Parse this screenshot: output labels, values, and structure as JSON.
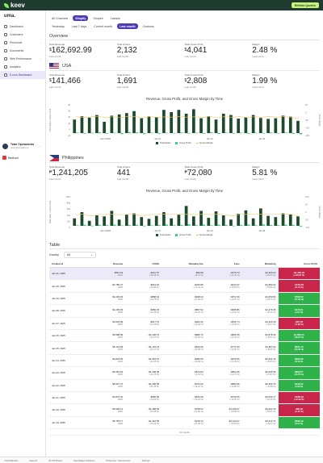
{
  "app": {
    "logo": "keev",
    "button": "Refetch Queries"
  },
  "sidebar": {
    "brand": "uma.",
    "items": [
      {
        "label": "Dashboard"
      },
      {
        "label": "Customers"
      },
      {
        "label": "Personnel"
      },
      {
        "label": "Documents"
      },
      {
        "label": "Web Performance"
      },
      {
        "label": "Analytics"
      },
      {
        "label": "E-com Dashboard"
      }
    ],
    "user": {
      "name": "Team Operaciones",
      "email": "team@umalabs.io"
    },
    "business": "Bertool"
  },
  "tabs": {
    "channels": [
      "All Channels",
      "Shopify",
      "Shopee",
      "Lazada"
    ],
    "active_channel": 1,
    "periods": [
      "Yesterday",
      "Last 7 days",
      "Current month",
      "Last month",
      "Customs"
    ],
    "active_period": 3
  },
  "overview": {
    "title": "Overview",
    "kpis": [
      {
        "label": "Total Revenue",
        "cur": "$",
        "value": "162,692.99",
        "sub": "Last month"
      },
      {
        "label": "Total Orders",
        "cur": "",
        "value": "2,132",
        "sub": "Last month"
      },
      {
        "label": "Total Gross Profit",
        "cur": "$",
        "value": "4,041",
        "sub": "Last month"
      },
      {
        "label": "Margin",
        "cur": "",
        "value": "2.48 %",
        "sub": "Last month"
      }
    ]
  },
  "usa": {
    "name": "USA",
    "kpis": [
      {
        "label": "Total Revenue",
        "cur": "$",
        "value": "141,466",
        "sub": "Last month"
      },
      {
        "label": "Total Orders",
        "cur": "",
        "value": "1,691",
        "sub": "Last month"
      },
      {
        "label": "Total Gross Profit",
        "cur": "$",
        "value": "2,808",
        "sub": "Last month"
      },
      {
        "label": "Margin",
        "cur": "",
        "value": "1.99 %",
        "sub": "Last month"
      }
    ],
    "chart_data": {
      "type": "bar",
      "title": "Revenue, Gross Profit, and Gross Margin by Time",
      "ylabel": "Total Sales + Gross Profit",
      "y2label": "Gross Margin",
      "xticks": [
        "Jan 5\n2025",
        "Jan 12",
        "Jan 19",
        "Jan 26"
      ],
      "ylim": [
        -1000,
        9000
      ],
      "y2lim": [
        -150,
        100
      ],
      "series": [
        {
          "name": "Total Sales",
          "values": [
            4200,
            5200,
            4800,
            5600,
            3500,
            5400,
            5800,
            6200,
            6800,
            4600,
            5200,
            5000,
            7200,
            6500,
            7200,
            6000,
            7400,
            4600,
            5200,
            4200,
            6000,
            5600,
            4500,
            4900,
            5600,
            4700,
            4400,
            4600,
            5400,
            5100,
            3800
          ]
        },
        {
          "name": "Gross Profit",
          "values": [
            120,
            -180,
            60,
            300,
            -200,
            90,
            -350,
            320,
            240,
            -300,
            150,
            -220,
            80,
            -150,
            200,
            -120,
            100,
            -200,
            260,
            -300,
            150,
            -180,
            120,
            -220,
            90,
            -150,
            200,
            -100,
            180,
            -250,
            -400
          ]
        },
        {
          "name": "Gross Margin",
          "values": [
            2,
            -4,
            1,
            5,
            -6,
            2,
            -6,
            5,
            4,
            -7,
            3,
            -4,
            1,
            -2,
            3,
            -2,
            1,
            -4,
            5,
            -7,
            3,
            -3,
            3,
            -4,
            2,
            -3,
            4,
            -2,
            3,
            -5,
            -10
          ]
        }
      ],
      "y2ticks": [
        "50",
        "0",
        "-50",
        "-100",
        "-150"
      ],
      "yticks": [
        "8k",
        "6k",
        "4k",
        "2k",
        "0",
        "-1k"
      ]
    }
  },
  "ph": {
    "name": "Philippines",
    "kpis": [
      {
        "label": "Total Revenue",
        "cur": "₱",
        "value": "1,241,205",
        "sub": "Last month"
      },
      {
        "label": "Total Orders",
        "cur": "",
        "value": "441",
        "sub": "Last month"
      },
      {
        "label": "Total Gross Profit",
        "cur": "₱",
        "value": "72,080",
        "sub": "Last month"
      },
      {
        "label": "Margin",
        "cur": "",
        "value": "5.81 %",
        "sub": "Last month"
      }
    ],
    "chart_data": {
      "type": "bar",
      "title": "Revenue, Gross Profit, and Gross Margin by Time",
      "ylabel": "Total Sales + Gross Profit",
      "y2label": "Gross Margin",
      "xticks": [
        "Jan 5\n2025",
        "Jan 12",
        "Jan 19",
        "Jan 26"
      ],
      "ylim": [
        -10000,
        120000
      ],
      "y2lim": [
        -100,
        150
      ],
      "series": [
        {
          "name": "Total Sales",
          "values": [
            30000,
            55000,
            20000,
            42000,
            38000,
            60000,
            25000,
            45000,
            50000,
            35000,
            28000,
            40000,
            55000,
            30000,
            45000,
            80000,
            38000,
            60000,
            32000,
            58000,
            42000,
            25000,
            48000,
            62000,
            30000,
            70000,
            40000,
            35000,
            50000,
            45000,
            38000
          ]
        },
        {
          "name": "Gross Profit",
          "values": [
            2000,
            4000,
            -1500,
            3500,
            2500,
            4500,
            1500,
            3000,
            4000,
            -2000,
            1800,
            3000,
            5000,
            2200,
            3200,
            6000,
            2500,
            4800,
            2000,
            4500,
            3000,
            -1500,
            3500,
            5000,
            2000,
            5500,
            3000,
            2500,
            4000,
            3500,
            -3000
          ]
        },
        {
          "name": "Gross Margin",
          "values": [
            6,
            8,
            -5,
            7,
            6,
            8,
            5,
            7,
            8,
            -6,
            6,
            7,
            9,
            7,
            7,
            8,
            6,
            8,
            6,
            8,
            7,
            -5,
            7,
            8,
            7,
            8,
            7,
            7,
            8,
            8,
            -8
          ]
        }
      ],
      "y2ticks": [
        "100",
        "50",
        "0",
        "-50",
        "-100"
      ],
      "yticks": [
        "100k",
        "80k",
        "60k",
        "40k",
        "20k",
        "0"
      ]
    }
  },
  "table": {
    "title": "Table",
    "filter_label": "Country",
    "filter_value": "All",
    "headers": [
      "Created at",
      "Revenue",
      "COGS",
      "Shipping Fee",
      "Fees",
      "Marketing",
      "Gross Profit"
    ],
    "rows": [
      {
        "date": "Jan 31, 2025",
        "rev": "$551.63",
        "revp": "100%",
        "cogs": "-$241.57",
        "cogsp": "(-28.08 %)",
        "ship": "-$90.90",
        "shipp": "(-9.70 %)",
        "fees": "-$176.73",
        "feesp": "(-14.06 %)",
        "mkt": "-$1,394.03",
        "mktp": "(-66.63 %)",
        "gp": "-$1,428.91",
        "gpp": "(-115.87 %)",
        "neg": true
      },
      {
        "date": "Jan 30, 2025",
        "rev": "$2,789.27",
        "revp": "100%",
        "cogs": "-$613.64",
        "cogsp": "(-22.00 %)",
        "ship": "-$346.89",
        "shipp": "(-12.44 %)",
        "fees": "-$423.37",
        "feesp": "(-15.18 %)",
        "mkt": "-$1,584.94",
        "mktp": "(-56.82 %)",
        "gp": "-$179.56",
        "gpp": "(-6.44 %)",
        "neg": true
      },
      {
        "date": "Jan 29, 2025",
        "rev": "$4,493.00",
        "revp": "100%",
        "cogs": "-$888.62",
        "cogsp": "(-19.78 %)",
        "ship": "-$498.44",
        "shipp": "(-11.09 %)",
        "fees": "-$672.39",
        "feesp": "(-14.97 %)",
        "mkt": "-$1,650.83",
        "mktp": "(-36.74 %)",
        "gp": "$782.52",
        "gpp": "(17.42 %)",
        "neg": false
      },
      {
        "date": "Jan 28, 2025",
        "rev": "$4,239.09",
        "revp": "100%",
        "cogs": "-$956.35",
        "cogsp": "(-22.56 %)",
        "ship": "-$857.91",
        "shipp": "(-20.24 %)",
        "fees": "-$605.86",
        "feesp": "(-14.29 %)",
        "mkt": "-$1,276.35",
        "mktp": "(-30.11 %)",
        "gp": "$172.61",
        "gpp": "(4.07 %)",
        "neg": false
      },
      {
        "date": "Jan 27, 2025",
        "rev": "$3,604.99",
        "revp": "100%",
        "cogs": "-$817.57",
        "cogsp": "(-22.68 %)",
        "ship": "-$394.32",
        "shipp": "(-10.94 %)",
        "fees": "-$540.74",
        "feesp": "(-15.00 %)",
        "mkt": "-$1,920.39",
        "mktp": "(-53.27 %)",
        "gp": "-$67.03",
        "gpp": "(-1.86 %)",
        "neg": true
      },
      {
        "date": "Jan 26, 2025",
        "rev": "$5,588.99",
        "revp": "100%",
        "cogs": "-$1,228.07",
        "cogsp": "(-21.97 %)",
        "ship": "-$586.76",
        "shipp": "(-10.50 %)",
        "fees": "-$826.35",
        "feesp": "(-14.79 %)",
        "mkt": "-$1,878.49",
        "mktp": "(-33.61 %)",
        "gp": "$1,069.31",
        "gpp": "(19.13 %)",
        "neg": false
      },
      {
        "date": "Jan 25, 2025",
        "rev": "$5,143.83",
        "revp": "100%",
        "cogs": "-$1,143.07",
        "cogsp": "(-22.22 %)",
        "ship": "-$549.60",
        "shipp": "(-10.68 %)",
        "fees": "-$771.53",
        "feesp": "(-15.00 %)",
        "mkt": "-$1,987.94",
        "mktp": "(-38.65 %)",
        "gp": "$691.70",
        "gpp": "(13.45 %)",
        "neg": false
      },
      {
        "date": "Jan 24, 2025",
        "rev": "$4,823.59",
        "revp": "100%",
        "cogs": "-$1,063.57",
        "cogsp": "(-22.05 %)",
        "ship": "-$486.55",
        "shipp": "(-10.09 %)",
        "fees": "-$676.56",
        "feesp": "(-14.03 %)",
        "mkt": "-$2,201.20",
        "mktp": "(-45.63 %)",
        "gp": "$395.09",
        "gpp": "(8.19 %)",
        "neg": false
      },
      {
        "date": "Jan 23, 2025",
        "rev": "$5,453.84",
        "revp": "100%",
        "cogs": "-$1,208.08",
        "cogsp": "(-22.15 %)",
        "ship": "-$514.64",
        "shipp": "(-9.44 %)",
        "fees": "-$804.95",
        "feesp": "(-14.76 %)",
        "mkt": "-$2,065.59",
        "mktp": "(-37.87 %)",
        "gp": "$860.57",
        "gpp": "(15.78 %)",
        "neg": false
      },
      {
        "date": "Jan 22, 2025",
        "rev": "$5,907.37",
        "revp": "100%",
        "cogs": "-$1,296.58",
        "cogsp": "(-21.95 %)",
        "ship": "-$734.22",
        "shipp": "(-12.43 %)",
        "fees": "-$884.96",
        "feesp": "(-14.98 %)",
        "mkt": "-$2,480.76",
        "mktp": "(-41.99 %)",
        "gp": "$149.34",
        "gpp": "(2.53 %)",
        "neg": false
      },
      {
        "date": "Jan 21, 2025",
        "rev": "$4,870.51",
        "revp": "100%",
        "cogs": "-$956.56",
        "cogsp": "(-19.64 %)",
        "ship": "-$644.49",
        "shipp": "(-13.23 %)",
        "fees": "-$730.56",
        "feesp": "(-15.00 %)",
        "mkt": "-$3,000.17",
        "mktp": "(-61.60 %)",
        "gp": "-$608.30",
        "gpp": "(-12.49 %)",
        "neg": true
      },
      {
        "date": "Jan 20, 2025",
        "rev": "$6,505.12",
        "revp": "100%",
        "cogs": "-$1,468.84",
        "cogsp": "(-22.58 %)",
        "ship": "-$768.62",
        "shipp": "(-11.82 %)",
        "fees": "-$1,039.67",
        "feesp": "(-15.98 %)",
        "mkt": "-$3,292.19",
        "mktp": "(-50.61 %)",
        "gp": "-$82.69",
        "gpp": "(-1.27 %)",
        "neg": true
      },
      {
        "date": "Jan 19, 2025",
        "rev": "$6,755.17",
        "revp": "100%",
        "cogs": "-$1,312.56",
        "cogsp": "(-19.43 %)",
        "ship": "-$749.14",
        "shipp": "(-11.09 %)",
        "fees": "-$1,013.27",
        "feesp": "(-15.00 %)",
        "mkt": "-$3,310.71",
        "mktp": "(-49.01 %)",
        "gp": "$369.49",
        "gpp": "(5.47 %)",
        "neg": false
      }
    ],
    "count": "31 results"
  },
  "footer": {
    "items": [
      "UmbrellaLabs",
      "Support",
      "Alt Tab Board",
      "OpenMagic Solutions",
      "Shared by: Operaciones",
      "Settings"
    ]
  },
  "colors": {
    "sales": "#1d4a2b",
    "profit": "#2fd68a",
    "margin": "#f3c56b",
    "accent": "#4b3db5",
    "neg": "#c8264b",
    "pos": "#2fb24a"
  }
}
